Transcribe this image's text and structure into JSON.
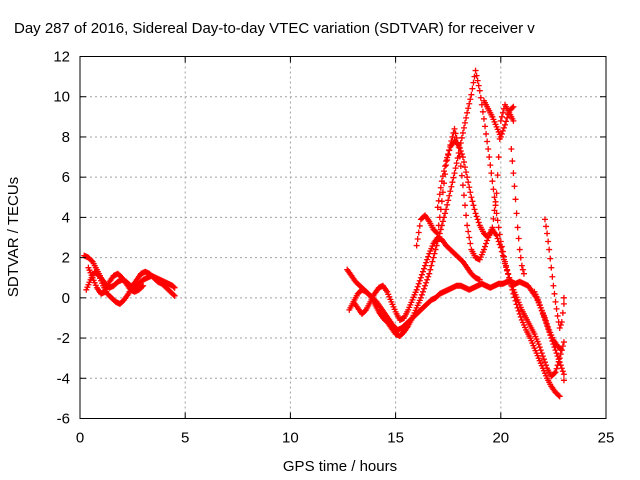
{
  "chart_data": {
    "type": "scatter",
    "title": "Day 287 of 2016, Sidereal Day-to-day VTEC variation (SDTVAR) for receiver v",
    "xlabel": "GPS time / hours",
    "ylabel": "SDTVAR / TECUs",
    "xlim": [
      0,
      25
    ],
    "ylim": [
      -6,
      12
    ],
    "xticks": [
      "0",
      "5",
      "10",
      "15",
      "20",
      "25"
    ],
    "yticks": [
      "-6",
      "-4",
      "-2",
      "0",
      "2",
      "4",
      "6",
      "8",
      "10",
      "12"
    ],
    "grid": true,
    "marker": "plus",
    "color": "#ff0000",
    "traces": [
      [
        [
          0.2,
          2.1
        ],
        [
          0.4,
          2.0
        ],
        [
          0.6,
          1.8
        ],
        [
          0.8,
          1.4
        ],
        [
          1.0,
          1.0
        ],
        [
          1.2,
          0.7
        ],
        [
          1.4,
          0.5
        ],
        [
          1.6,
          0.6
        ],
        [
          1.8,
          0.8
        ],
        [
          2.0,
          0.9
        ],
        [
          2.2,
          0.8
        ],
        [
          2.4,
          0.6
        ],
        [
          2.6,
          0.5
        ],
        [
          2.8,
          0.7
        ],
        [
          3.0,
          0.9
        ],
        [
          3.2,
          1.0
        ],
        [
          3.4,
          1.1
        ],
        [
          3.6,
          1.0
        ],
        [
          3.8,
          0.9
        ],
        [
          4.0,
          0.8
        ],
        [
          4.2,
          0.7
        ],
        [
          4.4,
          0.6
        ],
        [
          4.5,
          0.5
        ]
      ],
      [
        [
          0.3,
          0.4
        ],
        [
          0.5,
          0.9
        ],
        [
          0.7,
          1.3
        ],
        [
          0.9,
          1.1
        ],
        [
          1.1,
          0.6
        ],
        [
          1.3,
          0.2
        ],
        [
          1.5,
          0.0
        ],
        [
          1.7,
          -0.2
        ],
        [
          1.9,
          -0.3
        ],
        [
          2.1,
          -0.1
        ],
        [
          2.3,
          0.2
        ],
        [
          2.5,
          0.6
        ],
        [
          2.7,
          0.9
        ],
        [
          2.9,
          1.2
        ],
        [
          3.1,
          1.3
        ],
        [
          3.3,
          1.2
        ],
        [
          3.5,
          1.0
        ],
        [
          3.7,
          0.8
        ],
        [
          3.9,
          0.7
        ],
        [
          4.1,
          0.5
        ],
        [
          4.3,
          0.3
        ],
        [
          4.5,
          0.1
        ]
      ],
      [
        [
          0.4,
          1.5
        ],
        [
          0.6,
          1.0
        ],
        [
          0.8,
          0.5
        ],
        [
          1.0,
          0.2
        ],
        [
          1.2,
          0.3
        ],
        [
          1.4,
          0.8
        ],
        [
          1.6,
          1.1
        ],
        [
          1.8,
          1.2
        ],
        [
          2.0,
          1.0
        ],
        [
          2.2,
          0.7
        ],
        [
          2.4,
          0.4
        ],
        [
          2.6,
          0.3
        ],
        [
          2.8,
          0.4
        ],
        [
          3.0,
          0.6
        ]
      ],
      [
        [
          12.7,
          1.4
        ],
        [
          12.9,
          1.1
        ],
        [
          13.1,
          0.8
        ],
        [
          13.3,
          0.6
        ],
        [
          13.5,
          0.4
        ],
        [
          13.7,
          0.2
        ],
        [
          13.9,
          0.0
        ],
        [
          14.1,
          -0.2
        ],
        [
          14.3,
          -0.5
        ],
        [
          14.5,
          -0.8
        ],
        [
          14.7,
          -1.1
        ],
        [
          14.9,
          -1.4
        ],
        [
          15.1,
          -1.6
        ],
        [
          15.3,
          -1.5
        ],
        [
          15.5,
          -1.3
        ],
        [
          15.7,
          -1.1
        ],
        [
          15.9,
          -0.9
        ],
        [
          16.1,
          -0.7
        ],
        [
          16.3,
          -0.5
        ],
        [
          16.5,
          -0.3
        ],
        [
          16.7,
          -0.1
        ],
        [
          16.9,
          0.0
        ],
        [
          17.1,
          0.2
        ],
        [
          17.3,
          0.3
        ],
        [
          17.5,
          0.4
        ],
        [
          17.7,
          0.5
        ],
        [
          17.9,
          0.6
        ],
        [
          18.1,
          0.6
        ],
        [
          18.3,
          0.5
        ],
        [
          18.5,
          0.4
        ],
        [
          18.7,
          0.5
        ],
        [
          18.9,
          0.6
        ],
        [
          19.1,
          0.7
        ],
        [
          19.3,
          0.6
        ],
        [
          19.5,
          0.5
        ],
        [
          19.7,
          0.6
        ],
        [
          19.9,
          0.7
        ],
        [
          20.1,
          0.7
        ],
        [
          20.3,
          0.8
        ],
        [
          20.5,
          0.8
        ],
        [
          20.7,
          0.7
        ],
        [
          20.9,
          0.8
        ],
        [
          21.1,
          0.7
        ],
        [
          21.3,
          0.6
        ],
        [
          21.5,
          0.3
        ],
        [
          21.7,
          0.0
        ],
        [
          21.9,
          -0.5
        ],
        [
          22.1,
          -1.0
        ],
        [
          22.3,
          -1.6
        ],
        [
          22.5,
          -2.1
        ],
        [
          22.7,
          -2.4
        ],
        [
          22.9,
          -2.6
        ]
      ],
      [
        [
          12.8,
          -0.6
        ],
        [
          13.0,
          -0.2
        ],
        [
          13.2,
          0.2
        ],
        [
          13.4,
          0.4
        ],
        [
          13.6,
          0.3
        ],
        [
          13.8,
          0.1
        ],
        [
          14.0,
          -0.3
        ],
        [
          14.2,
          -0.7
        ],
        [
          14.4,
          -1.0
        ],
        [
          14.6,
          -1.2
        ],
        [
          14.8,
          -1.5
        ],
        [
          15.0,
          -1.8
        ],
        [
          15.2,
          -1.9
        ],
        [
          15.4,
          -1.7
        ],
        [
          15.6,
          -1.4
        ],
        [
          15.8,
          -1.0
        ],
        [
          16.0,
          -0.5
        ],
        [
          16.2,
          0.0
        ],
        [
          16.4,
          0.6
        ],
        [
          16.6,
          1.2
        ],
        [
          16.8,
          2.0
        ],
        [
          17.0,
          2.8
        ],
        [
          17.2,
          3.6
        ],
        [
          17.4,
          4.4
        ],
        [
          17.6,
          5.3
        ],
        [
          17.8,
          6.2
        ],
        [
          18.0,
          7.2
        ],
        [
          18.2,
          8.2
        ],
        [
          18.4,
          9.2
        ],
        [
          18.6,
          10.1
        ],
        [
          18.8,
          11.3
        ],
        [
          19.0,
          10.3
        ],
        [
          19.2,
          8.9
        ],
        [
          19.4,
          7.4
        ],
        [
          19.6,
          5.8
        ],
        [
          19.8,
          4.2
        ],
        [
          20.0,
          2.8
        ],
        [
          20.2,
          1.8
        ],
        [
          20.4,
          1.0
        ],
        [
          20.6,
          0.2
        ],
        [
          20.8,
          -0.5
        ],
        [
          21.0,
          -1.1
        ],
        [
          21.2,
          -1.6
        ],
        [
          21.4,
          -2.0
        ],
        [
          21.6,
          -2.5
        ],
        [
          21.8,
          -3.0
        ],
        [
          22.0,
          -3.5
        ],
        [
          22.2,
          -4.0
        ],
        [
          22.4,
          -4.4
        ],
        [
          22.6,
          -4.7
        ],
        [
          22.8,
          -4.9
        ]
      ],
      [
        [
          13.0,
          -0.2
        ],
        [
          13.2,
          -0.5
        ],
        [
          13.4,
          -0.8
        ],
        [
          13.6,
          -0.6
        ],
        [
          13.8,
          -0.2
        ],
        [
          14.0,
          0.2
        ],
        [
          14.2,
          0.5
        ],
        [
          14.4,
          0.6
        ],
        [
          14.6,
          0.3
        ],
        [
          14.8,
          -0.2
        ],
        [
          15.0,
          -0.7
        ],
        [
          15.2,
          -1.1
        ],
        [
          15.4,
          -1.0
        ],
        [
          15.6,
          -0.6
        ],
        [
          15.8,
          -0.1
        ],
        [
          16.0,
          0.4
        ],
        [
          16.2,
          1.0
        ],
        [
          16.4,
          1.6
        ],
        [
          16.6,
          2.2
        ],
        [
          16.8,
          2.7
        ],
        [
          17.0,
          3.0
        ],
        [
          17.2,
          2.9
        ],
        [
          17.4,
          2.6
        ],
        [
          17.6,
          2.4
        ],
        [
          17.8,
          2.2
        ],
        [
          18.0,
          2.0
        ],
        [
          18.2,
          1.8
        ],
        [
          18.4,
          1.5
        ],
        [
          18.6,
          1.2
        ],
        [
          18.8,
          1.0
        ],
        [
          19.0,
          0.9
        ]
      ],
      [
        [
          16.0,
          2.6
        ],
        [
          16.2,
          3.9
        ],
        [
          16.4,
          4.1
        ],
        [
          16.6,
          3.8
        ],
        [
          16.8,
          3.4
        ],
        [
          17.0,
          3.2
        ],
        [
          17.2,
          4.8
        ],
        [
          17.4,
          6.6
        ],
        [
          17.6,
          7.6
        ],
        [
          17.8,
          8.4
        ],
        [
          18.0,
          7.5
        ],
        [
          18.2,
          5.6
        ],
        [
          18.4,
          3.6
        ],
        [
          18.6,
          2.4
        ],
        [
          18.8,
          2.0
        ],
        [
          19.0,
          1.9
        ],
        [
          19.2,
          2.4
        ],
        [
          19.4,
          3.0
        ],
        [
          19.6,
          3.4
        ],
        [
          19.8,
          3.1
        ],
        [
          20.0,
          2.5
        ],
        [
          20.2,
          1.7
        ],
        [
          20.4,
          1.0
        ],
        [
          20.6,
          0.4
        ],
        [
          20.8,
          -0.1
        ],
        [
          21.0,
          -0.6
        ],
        [
          21.2,
          -1.0
        ],
        [
          21.4,
          -1.4
        ],
        [
          21.6,
          -1.8
        ],
        [
          21.8,
          -2.3
        ],
        [
          22.0,
          -2.9
        ],
        [
          22.2,
          -3.5
        ],
        [
          22.4,
          -3.9
        ],
        [
          22.6,
          -3.7
        ],
        [
          22.8,
          -3.0
        ],
        [
          23.0,
          -2.2
        ]
      ],
      [
        [
          17.0,
          4.5
        ],
        [
          17.2,
          5.8
        ],
        [
          17.4,
          6.8
        ],
        [
          17.6,
          7.5
        ],
        [
          17.8,
          7.8
        ],
        [
          18.0,
          7.6
        ],
        [
          18.2,
          7.0
        ],
        [
          18.4,
          6.0
        ],
        [
          18.6,
          5.0
        ],
        [
          18.8,
          4.2
        ],
        [
          19.0,
          3.6
        ],
        [
          19.2,
          3.2
        ],
        [
          19.4,
          3.0
        ],
        [
          19.6,
          3.5
        ],
        [
          19.8,
          5.2
        ],
        [
          20.0,
          8.8
        ],
        [
          20.2,
          9.6
        ],
        [
          20.4,
          9.2
        ],
        [
          20.6,
          8.8
        ]
      ],
      [
        [
          19.2,
          9.8
        ],
        [
          19.4,
          9.4
        ],
        [
          19.6,
          9.0
        ],
        [
          19.8,
          8.5
        ],
        [
          20.0,
          8.0
        ],
        [
          20.2,
          8.6
        ],
        [
          20.4,
          9.3
        ],
        [
          20.6,
          9.5
        ]
      ],
      [
        [
          20.5,
          7.4
        ],
        [
          20.6,
          6.2
        ],
        [
          20.7,
          4.9
        ],
        [
          20.8,
          3.5
        ],
        [
          20.9,
          2.4
        ],
        [
          21.0,
          1.6
        ],
        [
          21.1,
          1.2
        ]
      ],
      [
        [
          22.1,
          3.9
        ],
        [
          22.2,
          3.2
        ],
        [
          22.3,
          2.4
        ],
        [
          22.4,
          1.5
        ],
        [
          22.5,
          0.6
        ],
        [
          22.6,
          -0.2
        ],
        [
          22.7,
          -0.9
        ],
        [
          22.8,
          -1.5
        ],
        [
          22.9,
          -1.2
        ],
        [
          23.0,
          -0.3
        ],
        [
          23.0,
          0.0
        ]
      ],
      [
        [
          21.6,
          0.3
        ],
        [
          21.8,
          -0.2
        ],
        [
          22.0,
          -0.8
        ],
        [
          22.2,
          -1.4
        ],
        [
          22.4,
          -2.0
        ],
        [
          22.6,
          -2.6
        ],
        [
          22.8,
          -3.2
        ],
        [
          23.0,
          -3.8
        ],
        [
          23.0,
          -4.1
        ]
      ]
    ]
  }
}
